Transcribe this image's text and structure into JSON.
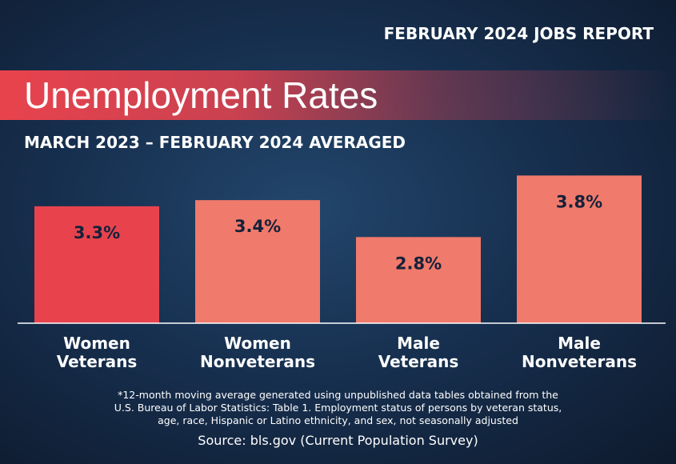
{
  "chart_data": {
    "type": "bar",
    "header": "FEBRUARY 2024 JOBS REPORT",
    "title": "Unemployment Rates",
    "subtitle": "MARCH 2023 – FEBRUARY 2024 AVERAGED",
    "categories": [
      "Women Veterans",
      "Women Nonveterans",
      "Male Veterans",
      "Male Nonveterans"
    ],
    "values": [
      3.3,
      3.4,
      2.8,
      3.8
    ],
    "value_labels": [
      "3.3%",
      "3.4%",
      "2.8%",
      "3.8%"
    ],
    "colors": [
      "#e8434d",
      "#f07a6b",
      "#f07a6b",
      "#f07a6b"
    ],
    "ylim": [
      1.4,
      4.0
    ],
    "footnote": [
      "*12-month moving average generated using unpublished data tables obtained from the",
      "U.S. Bureau of Labor Statistics: Table 1. Employment status of persons by veteran status,",
      "age, race, Hispanic or Latino ethnicity, and sex, not seasonally adjusted"
    ],
    "source": "Source: bls.gov (Current Population Survey)"
  }
}
